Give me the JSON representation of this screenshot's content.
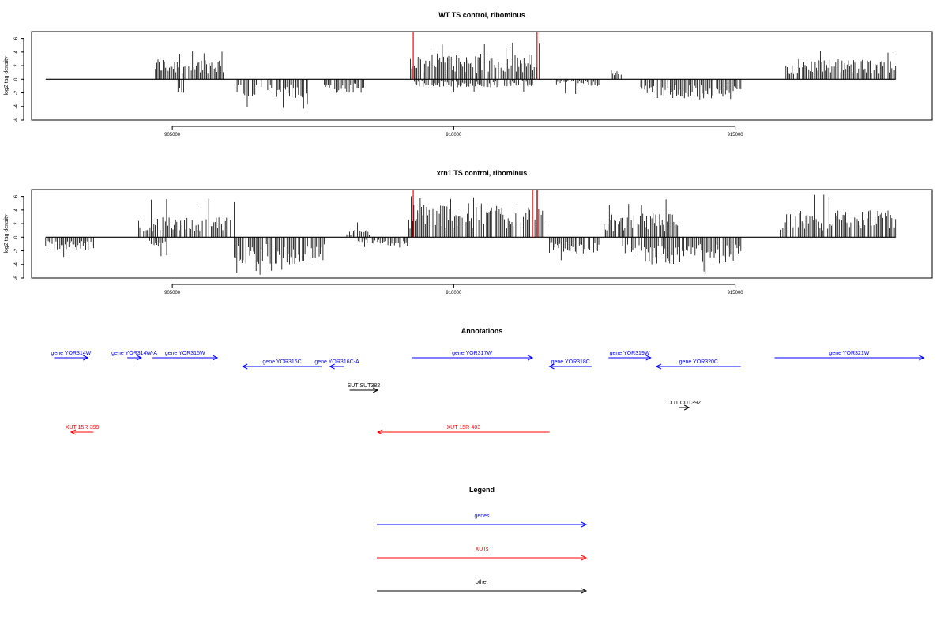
{
  "chart_data": [
    {
      "type": "bar",
      "title": "WT TS control, ribominus",
      "ylabel": "log2 tag density",
      "xlim": [
        902500,
        918500
      ],
      "ylim": [
        -6,
        7
      ],
      "x_ticks": [
        905000,
        910000,
        915000
      ],
      "x_tick_labels": [
        "905000",
        "910000",
        "915000"
      ],
      "y_ticks": [
        6,
        4,
        2,
        0,
        -2,
        -4,
        -6
      ],
      "y_tick_labels": [
        "6",
        "4",
        "2",
        "0",
        "-2",
        "-4",
        "-6"
      ],
      "baseline": {
        "x": [
          902750,
          917850
        ],
        "y": 0
      },
      "highlight_values": [
        {
          "x": 909280,
          "value": 7.2,
          "color": "#ff0000"
        },
        {
          "x": 911480,
          "value": 7.2,
          "color": "#ff0000"
        }
      ],
      "series": [
        {
          "strand": "plus",
          "ranges": [
            {
              "x": [
                904700,
                905950
              ],
              "max": 3.2,
              "peak": 4.4
            },
            {
              "x": [
                909230,
                911520
              ],
              "max": 3.8,
              "peak": 5.5
            },
            {
              "x": [
                912800,
                913000
              ],
              "max": 1.5,
              "peak": 3.8
            },
            {
              "x": [
                915900,
                917850
              ],
              "max": 3.0,
              "peak": 4.3
            }
          ]
        },
        {
          "strand": "minus",
          "ranges": [
            {
              "x": [
                905100,
                905200
              ],
              "max": 2.8,
              "peak": 2.8
            },
            {
              "x": [
                906150,
                907400
              ],
              "max": 2.8,
              "peak": 4.5
            },
            {
              "x": [
                907700,
                908400
              ],
              "max": 2.0,
              "peak": 2.8
            },
            {
              "x": [
                909300,
                911400
              ],
              "max": 1.2,
              "peak": 2.0
            },
            {
              "x": [
                911800,
                912600
              ],
              "max": 1.0,
              "peak": 2.2
            },
            {
              "x": [
                913300,
                915100
              ],
              "max": 3.0,
              "peak": 5.2
            }
          ]
        }
      ]
    },
    {
      "type": "bar",
      "title": "xrn1 TS control, ribominus",
      "ylabel": "log2 tag density",
      "xlim": [
        902500,
        918500
      ],
      "ylim": [
        -6,
        7
      ],
      "x_ticks": [
        905000,
        910000,
        915000
      ],
      "x_tick_labels": [
        "905000",
        "910000",
        "915000"
      ],
      "y_ticks": [
        6,
        4,
        2,
        0,
        -2,
        -4,
        -6
      ],
      "y_tick_labels": [
        "6",
        "4",
        "2",
        "0",
        "-2",
        "-4",
        "-6"
      ],
      "baseline": {
        "x": [
          902750,
          917850
        ],
        "y": 0
      },
      "highlight_values": [
        {
          "x": 909280,
          "value": 7.2,
          "color": "#ff0000"
        },
        {
          "x": 911400,
          "value": 7.0,
          "color": "#ff0000"
        },
        {
          "x": 911480,
          "value": 7.2,
          "color": "#ff0000"
        }
      ],
      "series": [
        {
          "strand": "plus",
          "ranges": [
            {
              "x": [
                904400,
                906100
              ],
              "max": 3.0,
              "peak": 5.8
            },
            {
              "x": [
                908100,
                908500
              ],
              "max": 1.2,
              "peak": 2.5
            },
            {
              "x": [
                909200,
                911600
              ],
              "max": 5.0,
              "peak": 7.0
            },
            {
              "x": [
                912650,
                914000
              ],
              "max": 3.5,
              "peak": 5.8
            },
            {
              "x": [
                915800,
                917850
              ],
              "max": 4.0,
              "peak": 6.3
            }
          ]
        },
        {
          "strand": "minus",
          "ranges": [
            {
              "x": [
                902750,
                903600
              ],
              "max": 2.0,
              "peak": 3.0
            },
            {
              "x": [
                904600,
                904900
              ],
              "max": 1.5,
              "peak": 2.8
            },
            {
              "x": [
                906100,
                907700
              ],
              "max": 4.0,
              "peak": 5.8
            },
            {
              "x": [
                908300,
                909200
              ],
              "max": 1.5,
              "peak": 2.5
            },
            {
              "x": [
                911700,
                912600
              ],
              "max": 2.5,
              "peak": 3.5
            },
            {
              "x": [
                913000,
                915100
              ],
              "max": 4.0,
              "peak": 5.8
            }
          ]
        }
      ]
    },
    {
      "type": "annotation_track",
      "title": "Annotations",
      "xlim": [
        902500,
        918500
      ],
      "features": [
        {
          "label": "gene YOR314W",
          "start": 902900,
          "end": 903500,
          "strand": "+",
          "row": 0,
          "color": "#0000ff"
        },
        {
          "label": "gene YOR314W-A",
          "start": 904200,
          "end": 904450,
          "strand": "+",
          "row": 0,
          "color": "#0000ff"
        },
        {
          "label": "gene YOR315W",
          "start": 904650,
          "end": 905800,
          "strand": "+",
          "row": 0,
          "color": "#0000ff"
        },
        {
          "label": "gene YOR316C",
          "start": 906250,
          "end": 907650,
          "strand": "-",
          "row": 1,
          "color": "#0000ff"
        },
        {
          "label": "gene YOR316C-A",
          "start": 907800,
          "end": 908050,
          "strand": "-",
          "row": 1,
          "color": "#0000ff"
        },
        {
          "label": "gene YOR317W",
          "start": 909250,
          "end": 911400,
          "strand": "+",
          "row": 0,
          "color": "#0000ff"
        },
        {
          "label": "gene YOR318C",
          "start": 911700,
          "end": 912450,
          "strand": "-",
          "row": 1,
          "color": "#0000ff"
        },
        {
          "label": "gene YOR319W",
          "start": 912750,
          "end": 913500,
          "strand": "+",
          "row": 0,
          "color": "#0000ff"
        },
        {
          "label": "gene YOR320C",
          "start": 913600,
          "end": 915100,
          "strand": "-",
          "row": 1,
          "color": "#0000ff"
        },
        {
          "label": "gene YOR321W",
          "start": 915700,
          "end": 918350,
          "strand": "+",
          "row": 0,
          "color": "#0000ff"
        },
        {
          "label": "SUT SUT382",
          "start": 908150,
          "end": 908650,
          "strand": "+",
          "row": 2,
          "color": "#000000"
        },
        {
          "label": "CUT CUT392",
          "start": 914000,
          "end": 914180,
          "strand": "+",
          "row": 3,
          "color": "#000000"
        },
        {
          "label": "XUT 15R-399",
          "start": 903200,
          "end": 903600,
          "strand": "-",
          "row": 4,
          "color": "#ff0000"
        },
        {
          "label": "XUT 15R-403",
          "start": 908650,
          "end": 911700,
          "strand": "-",
          "row": 4,
          "color": "#ff0000"
        }
      ]
    },
    {
      "type": "legend",
      "title": "Legend",
      "entries": [
        {
          "label": "genes",
          "color": "#0000ff"
        },
        {
          "label": "XUTs",
          "color": "#ff0000"
        },
        {
          "label": "other",
          "color": "#000000"
        }
      ]
    }
  ]
}
